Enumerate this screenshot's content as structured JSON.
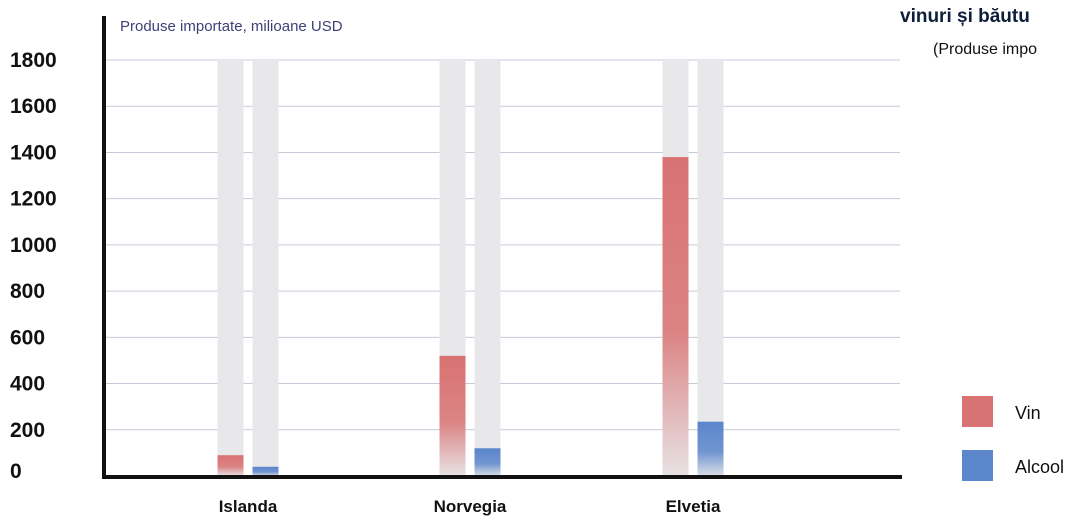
{
  "chart_data": {
    "type": "bar",
    "title": "vinuri și băutu",
    "subtitle": "(Produse impo",
    "ylabel": "Produse importate, milioane USD",
    "xlabel": "",
    "categories": [
      "Islanda",
      "Norvegia",
      "Elvetia"
    ],
    "series": [
      {
        "name": "Vin",
        "values": [
          90,
          520,
          1380
        ],
        "color": "#d97272"
      },
      {
        "name": "Alcool",
        "values": [
          40,
          120,
          235
        ],
        "color": "#5b86cc"
      }
    ],
    "yticks": [
      "0",
      "200",
      "400",
      "600",
      "800",
      "1000",
      "1200",
      "1400",
      "1600",
      "1800"
    ],
    "ylim": [
      0,
      1800
    ],
    "grid": true,
    "legend_position": "right",
    "background_bar_color": "#e8e8ea",
    "grid_color": "#c9c9d8"
  }
}
